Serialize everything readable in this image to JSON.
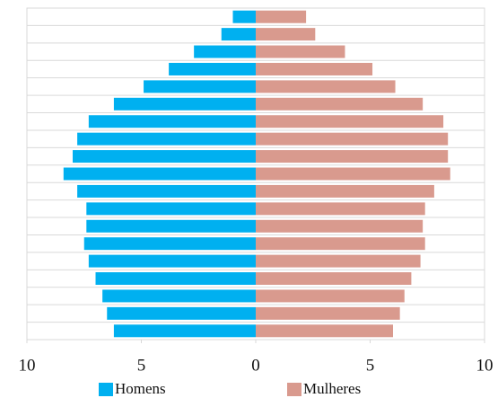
{
  "chart_data": {
    "type": "pyramid",
    "categories": [
      null,
      null,
      null,
      null,
      null,
      null,
      null,
      null,
      null,
      null,
      null,
      null,
      null,
      null,
      null,
      null,
      null,
      null,
      null
    ],
    "series": [
      {
        "name": "Homens",
        "color": "#00b0f0",
        "side": "left",
        "values": [
          1.0,
          1.5,
          2.7,
          3.8,
          4.9,
          6.2,
          7.3,
          7.8,
          8.0,
          8.4,
          7.8,
          7.4,
          7.4,
          7.5,
          7.3,
          7.0,
          6.7,
          6.5,
          6.2
        ]
      },
      {
        "name": "Mulheres",
        "color": "#d99a8e",
        "side": "right",
        "values": [
          2.2,
          2.6,
          3.9,
          5.1,
          6.1,
          7.3,
          8.2,
          8.4,
          8.4,
          8.5,
          7.8,
          7.4,
          7.3,
          7.4,
          7.2,
          6.8,
          6.5,
          6.3,
          6.0
        ]
      }
    ],
    "xlim": [
      -10,
      10
    ],
    "xticks": [
      {
        "value": -10,
        "label": "10"
      },
      {
        "value": -5,
        "label": "5"
      },
      0,
      5,
      10
    ],
    "legend": "bottom"
  }
}
